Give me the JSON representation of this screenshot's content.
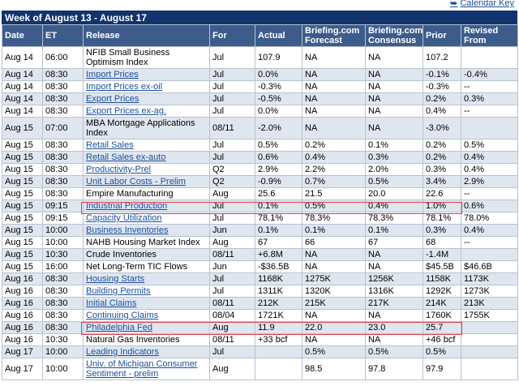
{
  "header": {
    "calendar_key": "Calendar Key",
    "week_title": "Week of August 13 - August 17"
  },
  "columns": [
    "Date",
    "ET",
    "Release",
    "For",
    "Actual",
    "Briefing.com Forecast",
    "Briefing.com Consensus",
    "Prior",
    "Revised From"
  ],
  "rows": [
    {
      "date": "Aug 14",
      "et": "06:00",
      "release": "NFIB Small Business Optimism Index",
      "link": false,
      "for": "Jul",
      "actual": "107.9",
      "forecast": "NA",
      "consensus": "NA",
      "prior": "107.2",
      "revised": ""
    },
    {
      "date": "Aug 14",
      "et": "08:30",
      "release": "Import Prices",
      "link": true,
      "for": "Jul",
      "actual": "0.0%",
      "forecast": "NA",
      "consensus": "NA",
      "prior": "-0.1%",
      "revised": "-0.4%"
    },
    {
      "date": "Aug 14",
      "et": "08:30",
      "release": "Import Prices ex-oil",
      "link": true,
      "for": "Jul",
      "actual": "-0.3%",
      "forecast": "NA",
      "consensus": "NA",
      "prior": "-0.3%",
      "revised": "--"
    },
    {
      "date": "Aug 14",
      "et": "08:30",
      "release": "Export Prices",
      "link": true,
      "for": "Jul",
      "actual": "-0.5%",
      "forecast": "NA",
      "consensus": "NA",
      "prior": "0.2%",
      "revised": "0.3%"
    },
    {
      "date": "Aug 14",
      "et": "08:30",
      "release": "Export Prices ex-ag.",
      "link": true,
      "for": "Jul",
      "actual": "0.0%",
      "forecast": "NA",
      "consensus": "NA",
      "prior": "0.4%",
      "revised": "--"
    },
    {
      "date": "Aug 15",
      "et": "07:00",
      "release": "MBA Mortgage Applications Index",
      "link": false,
      "for": "08/11",
      "actual": "-2.0%",
      "forecast": "NA",
      "consensus": "NA",
      "prior": "-3.0%",
      "revised": ""
    },
    {
      "date": "Aug 15",
      "et": "08:30",
      "release": "Retail Sales",
      "link": true,
      "for": "Jul",
      "actual": "0.5%",
      "forecast": "0.2%",
      "consensus": "0.1%",
      "prior": "0.2%",
      "revised": "0.5%"
    },
    {
      "date": "Aug 15",
      "et": "08:30",
      "release": "Retail Sales ex-auto",
      "link": true,
      "for": "Jul",
      "actual": "0.6%",
      "forecast": "0.4%",
      "consensus": "0.3%",
      "prior": "0.2%",
      "revised": "0.4%"
    },
    {
      "date": "Aug 15",
      "et": "08:30",
      "release": "Productivity-Prel",
      "link": true,
      "for": "Q2",
      "actual": "2.9%",
      "forecast": "2.2%",
      "consensus": "2.0%",
      "prior": "0.3%",
      "revised": "0.4%"
    },
    {
      "date": "Aug 15",
      "et": "08:30",
      "release": "Unit Labor Costs - Prelim",
      "link": true,
      "for": "Q2",
      "actual": "-0.9%",
      "forecast": "0.7%",
      "consensus": "0.5%",
      "prior": "3.4%",
      "revised": "2.9%"
    },
    {
      "date": "Aug 15",
      "et": "08:30",
      "release": "Empire Manufacturing",
      "link": false,
      "for": "Aug",
      "actual": "25.6",
      "forecast": "21.5",
      "consensus": "20.0",
      "prior": "22.6",
      "revised": "--"
    },
    {
      "date": "Aug 15",
      "et": "09:15",
      "release": "Industrial Production",
      "link": true,
      "for": "Jul",
      "actual": "0.1%",
      "forecast": "0.5%",
      "consensus": "0.4%",
      "prior": "1.0%",
      "revised": "0.6%"
    },
    {
      "date": "Aug 15",
      "et": "09:15",
      "release": "Capacity Utilization",
      "link": true,
      "for": "Jul",
      "actual": "78.1%",
      "forecast": "78.3%",
      "consensus": "78.3%",
      "prior": "78.1%",
      "revised": "78.0%"
    },
    {
      "date": "Aug 15",
      "et": "10:00",
      "release": "Business Inventories",
      "link": true,
      "for": "Jun",
      "actual": "0.1%",
      "forecast": "0.1%",
      "consensus": "0.1%",
      "prior": "0.3%",
      "revised": "0.4%"
    },
    {
      "date": "Aug 15",
      "et": "10:00",
      "release": "NAHB Housing Market Index",
      "link": false,
      "for": "Aug",
      "actual": "67",
      "forecast": "66",
      "consensus": "67",
      "prior": "68",
      "revised": "--"
    },
    {
      "date": "Aug 15",
      "et": "10:30",
      "release": "Crude Inventories",
      "link": false,
      "for": "08/11",
      "actual": "+6.8M",
      "forecast": "NA",
      "consensus": "NA",
      "prior": "-1.4M",
      "revised": ""
    },
    {
      "date": "Aug 15",
      "et": "16:00",
      "release": "Net Long-Term TIC Flows",
      "link": false,
      "for": "Jun",
      "actual": "-$36.5B",
      "forecast": "NA",
      "consensus": "NA",
      "prior": "$45.5B",
      "revised": "$46.6B"
    },
    {
      "date": "Aug 16",
      "et": "08:30",
      "release": "Housing Starts",
      "link": true,
      "for": "Jul",
      "actual": "1168K",
      "forecast": "1275K",
      "consensus": "1256K",
      "prior": "1158K",
      "revised": "1173K"
    },
    {
      "date": "Aug 16",
      "et": "08:30",
      "release": "Building Permits",
      "link": true,
      "for": "Jul",
      "actual": "1311K",
      "forecast": "1320K",
      "consensus": "1316K",
      "prior": "1292K",
      "revised": "1273K"
    },
    {
      "date": "Aug 16",
      "et": "08:30",
      "release": "Initial Claims",
      "link": true,
      "for": "08/11",
      "actual": "212K",
      "forecast": "215K",
      "consensus": "217K",
      "prior": "214K",
      "revised": "213K"
    },
    {
      "date": "Aug 16",
      "et": "08:30",
      "release": "Continuing Claims",
      "link": true,
      "for": "08/04",
      "actual": "1721K",
      "forecast": "NA",
      "consensus": "NA",
      "prior": "1760K",
      "revised": "1755K"
    },
    {
      "date": "Aug 16",
      "et": "08:30",
      "release": "Philadelphia Fed",
      "link": true,
      "for": "Aug",
      "actual": "11.9",
      "forecast": "22.0",
      "consensus": "23.0",
      "prior": "25.7",
      "revised": ""
    },
    {
      "date": "Aug 16",
      "et": "10:30",
      "release": "Natural Gas Inventories",
      "link": false,
      "for": "08/11",
      "actual": "+33 bcf",
      "forecast": "NA",
      "consensus": "NA",
      "prior": "+46 bcf",
      "revised": ""
    },
    {
      "date": "Aug 17",
      "et": "10:00",
      "release": "Leading Indicators",
      "link": true,
      "for": "Jul",
      "actual": "",
      "forecast": "0.5%",
      "consensus": "0.5%",
      "prior": "0.5%",
      "revised": ""
    },
    {
      "date": "Aug 17",
      "et": "10:00",
      "release": "Univ. of Michigan Consumer Sentiment - prelim",
      "link": true,
      "for": "Aug",
      "actual": "",
      "forecast": "98.5",
      "consensus": "97.8",
      "prior": "97.9",
      "revised": ""
    }
  ],
  "colors": {
    "title_bar": "#12346e",
    "header_bg": "#3d5c8c",
    "alt_row": "#dfe6f0",
    "link": "#1a4f9c",
    "highlight": "#e0404a"
  }
}
